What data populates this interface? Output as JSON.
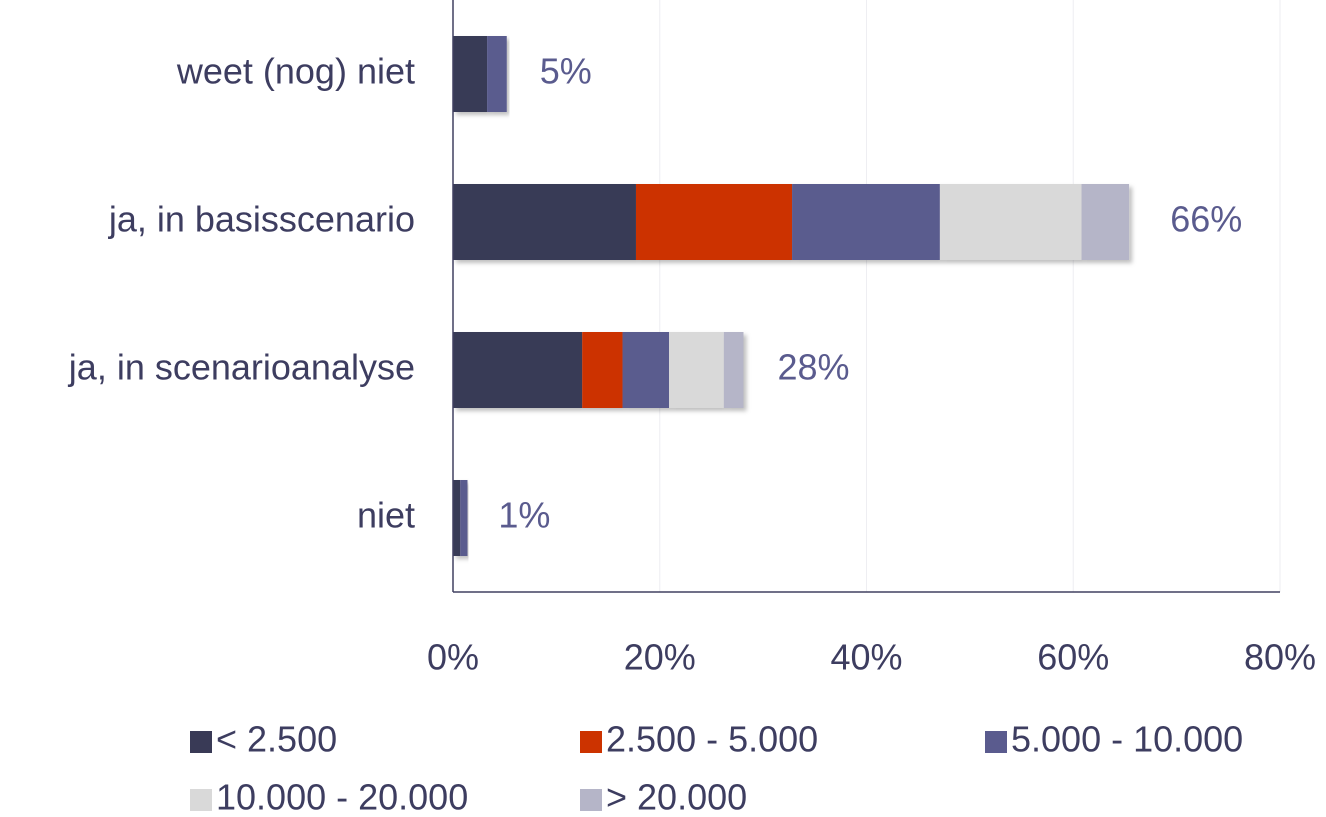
{
  "chart_data": {
    "type": "stacked_barh",
    "categories": [
      "weet (nog) niet",
      "ja, in basisscenario",
      "ja, in scenarioanalyse",
      "niet"
    ],
    "series": [
      {
        "name": "< 2.500",
        "color": "#393a56",
        "values": [
          3.3,
          17.7,
          12.5,
          0.7
        ]
      },
      {
        "name": "2.500 - 5.000",
        "color": "#cc3300",
        "values": [
          0,
          15.1,
          3.9,
          0
        ]
      },
      {
        "name": "5.000 - 10.000",
        "color": "#5a5b8e",
        "values": [
          1.9,
          14.3,
          4.5,
          0.7
        ]
      },
      {
        "name": "10.000 - 20.000",
        "color": "#d9d9d9",
        "values": [
          0,
          13.7,
          5.3,
          0
        ]
      },
      {
        "name": "> 20.000",
        "color": "#b5b5c8",
        "values": [
          0,
          4.6,
          1.9,
          0
        ]
      }
    ],
    "totals": [
      5,
      66,
      28,
      1
    ],
    "total_labels": [
      "5%",
      "66%",
      "28%",
      "1%"
    ],
    "xlim": [
      0,
      80
    ],
    "xticks": [
      {
        "value": 0,
        "label": "0%"
      },
      {
        "value": 20,
        "label": "20%"
      },
      {
        "value": 40,
        "label": "40%"
      },
      {
        "value": 60,
        "label": "60%"
      },
      {
        "value": 80,
        "label": "80%"
      }
    ],
    "grid": true,
    "legend": "bottom"
  }
}
